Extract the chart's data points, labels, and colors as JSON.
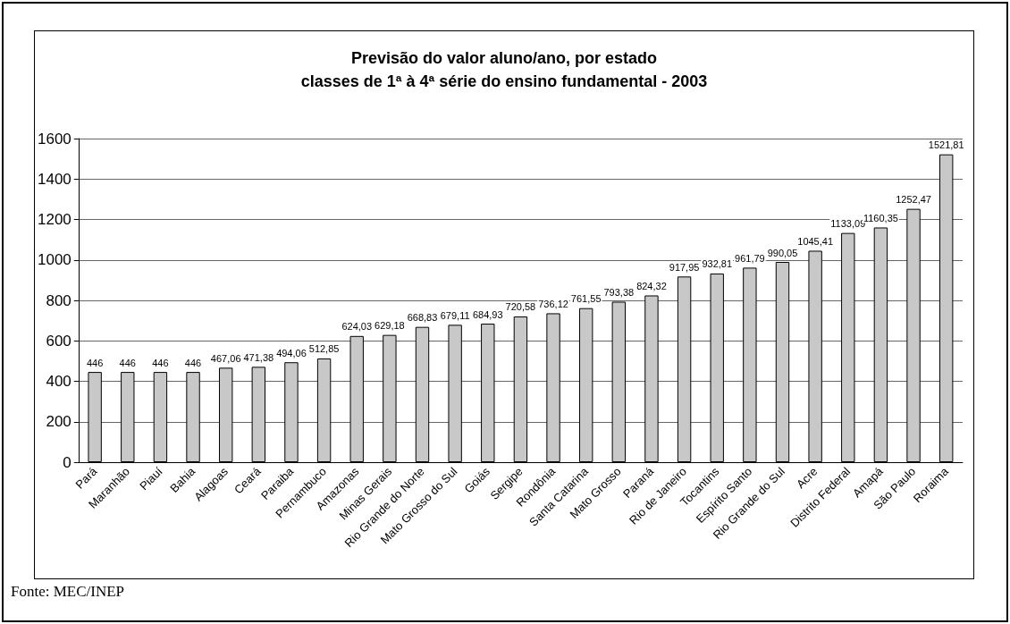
{
  "chart_data": {
    "type": "bar",
    "title": "Previsão do valor aluno/ano, por estado\nclasses de 1ª à 4ª série do ensino fundamental - 2003",
    "categories": [
      "Pará",
      "Maranhão",
      "Piauí",
      "Bahia",
      "Alagoas",
      "Ceará",
      "Paraiba",
      "Pernambuco",
      "Amazonas",
      "Minas Gerais",
      "Rio Grande do Norte",
      "Mato Grosso do Sul",
      "Goiás",
      "Sergipe",
      "Rondônia",
      "Santa Catarina",
      "Mato Grosso",
      "Paraná",
      "Rio de Janeiro",
      "Tocantins",
      "Espírito Santo",
      "Rio Grande do Sul",
      "Acre",
      "Distrito Federal",
      "Amapá",
      "São Paulo",
      "Roraima"
    ],
    "values": [
      446,
      446,
      446,
      446,
      467.06,
      471.38,
      494.06,
      512.85,
      624.03,
      629.18,
      668.83,
      679.11,
      684.93,
      720.58,
      736.12,
      761.55,
      793.38,
      824.32,
      917.95,
      932.81,
      961.79,
      990.05,
      1045.41,
      1133.09,
      1160.35,
      1252.47,
      1521.81
    ],
    "value_labels": [
      "446",
      "446",
      "446",
      "446",
      "467,06",
      "471,38",
      "494,06",
      "512,85",
      "624,03",
      "629,18",
      "668,83",
      "679,11",
      "684,93",
      "720,58",
      "736,12",
      "761,55",
      "793,38",
      "824,32",
      "917,95",
      "932,81",
      "961,79",
      "990,05",
      "1045,41",
      "1133,09",
      "1160,35",
      "1252,47",
      "1521,81"
    ],
    "color": "#c8c8c8",
    "ylim": [
      0,
      1600
    ],
    "yticks": [
      0,
      200,
      400,
      600,
      800,
      1000,
      1200,
      1400,
      1600
    ],
    "grid": "y",
    "annotations": [
      "Fonte: MEC/INEP"
    ]
  }
}
